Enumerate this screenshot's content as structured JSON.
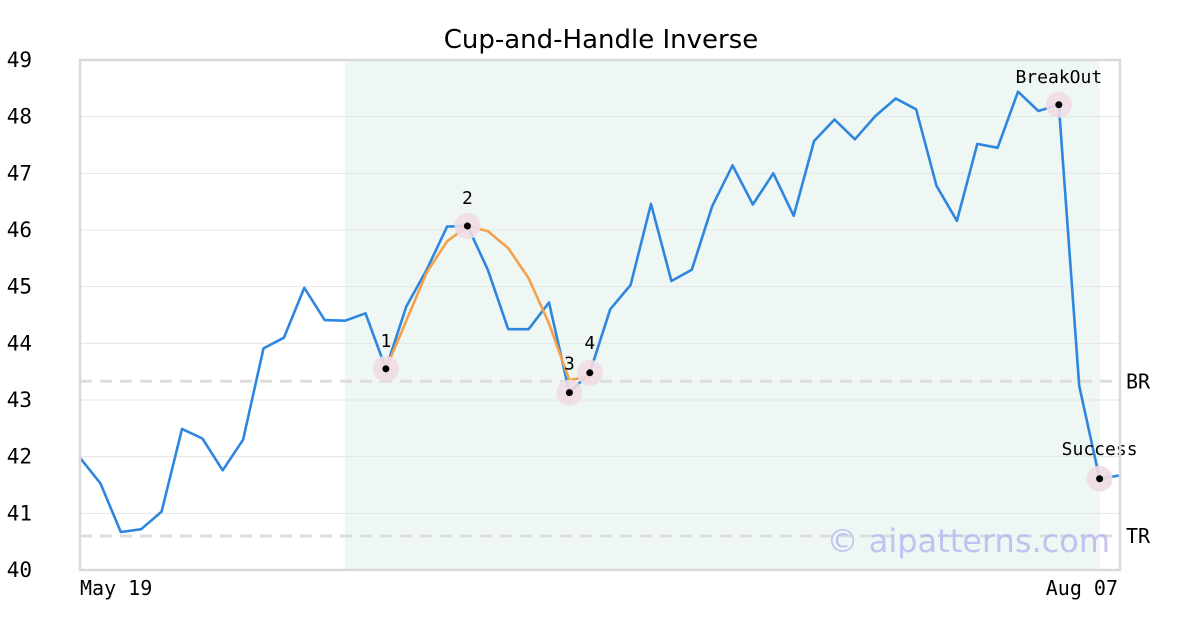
{
  "chart_data": {
    "type": "line",
    "title": "Cup-and-Handle Inverse",
    "xlabel": "",
    "ylabel": "",
    "ylim": [
      40,
      49
    ],
    "yticks": [
      40,
      41,
      42,
      43,
      44,
      45,
      46,
      47,
      48,
      49
    ],
    "xtick_labels": [
      "May 19",
      "Aug 07"
    ],
    "grid": true,
    "watermark": "© aipatterns.com",
    "colors": {
      "price": "#2e86de",
      "cup_fit": "#f5a04a",
      "highlight": "#eef7f3",
      "marker_halo": "#f0dce6",
      "marker": "#000000",
      "level_line": "#dddddd",
      "gridline": "#e6e6e6",
      "frame": "#d9d9d9"
    },
    "highlight_range": [
      13,
      50
    ],
    "series": [
      {
        "values": [
          41.98,
          41.53,
          40.67,
          40.72,
          41.03,
          42.49,
          42.32,
          41.76,
          42.3,
          43.91,
          44.1,
          44.98,
          44.41,
          44.4,
          44.53,
          43.55,
          44.65,
          45.3,
          46.06,
          46.07,
          45.3,
          44.25,
          44.25,
          44.72,
          43.13,
          43.48,
          44.6,
          45.03,
          46.46,
          45.1,
          45.3,
          46.42,
          47.14,
          46.45,
          47.0,
          46.25,
          47.57,
          47.95,
          47.6,
          48.01,
          48.32,
          48.13,
          46.78,
          46.16,
          47.52,
          47.45,
          48.44,
          48.1,
          48.21,
          43.25,
          41.61,
          41.67
        ]
      },
      {
        "x_start": 15,
        "values": [
          43.55,
          44.4,
          45.25,
          45.8,
          46.07,
          45.98,
          45.68,
          45.15,
          44.35,
          43.35,
          43.42
        ]
      }
    ],
    "annotations": [
      {
        "label": "1",
        "x": 15,
        "y": 43.55
      },
      {
        "label": "2",
        "x": 19,
        "y": 46.07
      },
      {
        "label": "3",
        "x": 24,
        "y": 43.13
      },
      {
        "label": "4",
        "x": 25,
        "y": 43.48
      },
      {
        "label": "BreakOut",
        "x": 48,
        "y": 48.21
      },
      {
        "label": "Success",
        "x": 50,
        "y": 41.61
      }
    ],
    "levels": [
      {
        "label": "BR",
        "y": 43.33
      },
      {
        "label": "TR",
        "y": 40.6
      }
    ]
  }
}
